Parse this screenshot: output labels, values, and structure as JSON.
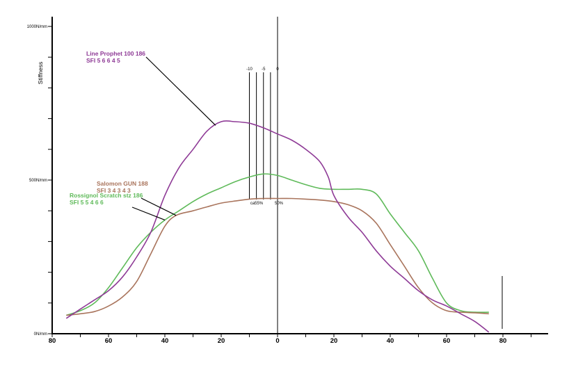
{
  "chart_data": {
    "type": "line",
    "title": "",
    "ylabel": "Stiffness",
    "xlabel": "",
    "xlim": [
      -80,
      90
    ],
    "ylim": [
      0,
      1000
    ],
    "x_tick_labels": [
      "80",
      "60",
      "40",
      "20",
      "0",
      "20",
      "40",
      "60",
      "80"
    ],
    "x_tick_values": [
      -80,
      -60,
      -40,
      -20,
      0,
      20,
      40,
      60,
      80
    ],
    "y_labeled_ticks": [
      {
        "value": 1000,
        "label": "1000N/mm"
      },
      {
        "value": 500,
        "label": "500N/mm"
      },
      {
        "value": 0,
        "label": "0N/mm"
      }
    ],
    "y_minor_step": 100,
    "mount_marks": [
      {
        "x": -10,
        "label": "-10"
      },
      {
        "x": -5,
        "label": "-5"
      },
      {
        "x": 0,
        "label": "0"
      }
    ],
    "mount_mark_extra_lines": [
      -7.5,
      -2.5
    ],
    "center_labels": {
      "left": "ca55%",
      "right": "50%"
    },
    "series": [
      {
        "name": "Line Prophet 100 186",
        "sfi": "SFI 5 6 6 4 5",
        "color": "#8e3a96",
        "x": [
          -75,
          -70,
          -65,
          -60,
          -55,
          -50,
          -45,
          -40,
          -35,
          -30,
          -25,
          -20,
          -15,
          -10,
          -5,
          0,
          5,
          10,
          15,
          18,
          20,
          25,
          30,
          35,
          40,
          45,
          50,
          55,
          60,
          65,
          70,
          75
        ],
        "y": [
          50,
          80,
          110,
          140,
          185,
          250,
          330,
          450,
          540,
          600,
          660,
          690,
          690,
          685,
          670,
          650,
          630,
          600,
          560,
          510,
          450,
          380,
          330,
          270,
          220,
          180,
          140,
          110,
          90,
          65,
          40,
          5
        ]
      },
      {
        "name": "Salomon GUN 188",
        "sfi": "SFI 3 4 3 4 3",
        "color": "#a9745c",
        "x": [
          -75,
          -70,
          -65,
          -60,
          -55,
          -50,
          -45,
          -40,
          -36,
          -30,
          -25,
          -20,
          -15,
          -10,
          -5,
          0,
          5,
          10,
          15,
          20,
          25,
          30,
          35,
          40,
          45,
          50,
          55,
          60,
          65,
          70,
          75
        ],
        "y": [
          60,
          65,
          72,
          90,
          120,
          170,
          260,
          350,
          385,
          400,
          413,
          425,
          432,
          438,
          440,
          440,
          440,
          438,
          435,
          430,
          420,
          400,
          360,
          290,
          220,
          150,
          100,
          75,
          70,
          68,
          65
        ]
      },
      {
        "name": "Rossignol Scratch stz 186",
        "sfi": "SFI 5 5 4 6 6",
        "color": "#5fba5a",
        "x": [
          -75,
          -70,
          -65,
          -60,
          -55,
          -50,
          -45,
          -40,
          -35,
          -30,
          -25,
          -20,
          -15,
          -10,
          -5,
          0,
          5,
          10,
          15,
          20,
          25,
          30,
          35,
          40,
          45,
          50,
          55,
          60,
          65,
          70,
          75
        ],
        "y": [
          60,
          75,
          100,
          150,
          215,
          280,
          330,
          370,
          400,
          430,
          455,
          475,
          495,
          510,
          520,
          515,
          500,
          485,
          473,
          470,
          470,
          470,
          455,
          390,
          330,
          270,
          180,
          100,
          75,
          70,
          70
        ]
      }
    ],
    "annotations": [
      {
        "series": 0,
        "anchor_x": -22
      },
      {
        "series": 1,
        "anchor_x": -36
      },
      {
        "series": 2,
        "anchor_x": -40
      }
    ],
    "grid": false
  }
}
